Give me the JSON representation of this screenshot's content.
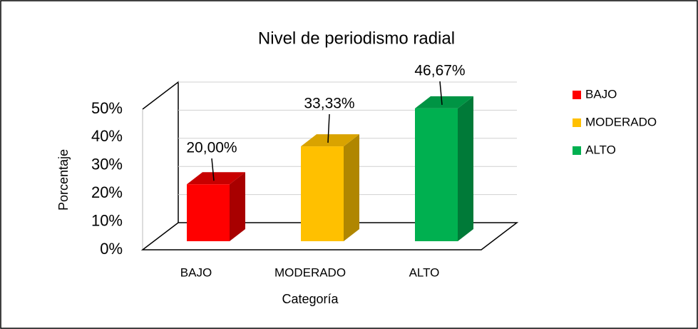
{
  "chart_data": {
    "type": "bar3d",
    "title": "Nivel de periodismo radial",
    "categories": [
      "BAJO",
      "MODERADO",
      "ALTO"
    ],
    "values": [
      20.0,
      33.33,
      46.67
    ],
    "value_labels": [
      "20,00%",
      "33,33%",
      "46,67%"
    ],
    "colors": [
      "#ff0000",
      "#ffc000",
      "#00b050"
    ],
    "side_colors": [
      "#a80000",
      "#b08600",
      "#007a38"
    ],
    "top_colors": [
      "#c80000",
      "#d9a300",
      "#009444"
    ],
    "legend_position": "right",
    "xlabel": "Categoría",
    "ylabel": "Porcentaje",
    "ylim": [
      0,
      50
    ],
    "yticks": [
      {
        "value": 0,
        "label": "0%"
      },
      {
        "value": 10,
        "label": "10%"
      },
      {
        "value": 20,
        "label": "20%"
      },
      {
        "value": 30,
        "label": "30%"
      },
      {
        "value": 40,
        "label": "40%"
      },
      {
        "value": 50,
        "label": "50%"
      }
    ],
    "grid": true
  }
}
